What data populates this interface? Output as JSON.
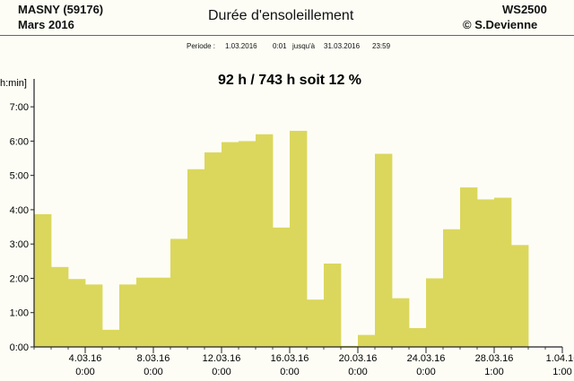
{
  "header": {
    "station": "MASNY (59176)",
    "month": "Mars  2016",
    "title": "Durée d'ensoleillement",
    "device": "WS2500",
    "copyright": "© S.Devienne"
  },
  "period": {
    "label": "Periode :",
    "start_date": "1.03.2016",
    "start_time": "0:01",
    "until": "jusqu'à",
    "end_date": "31.03.2016",
    "end_time": "23:59"
  },
  "colors": {
    "bar": "#dbd75c",
    "axis": "#222222",
    "background": "#fdfdf6"
  },
  "chart_data": {
    "type": "bar",
    "title": "92 h / 743 h  soit  12 %",
    "ylabel": "h:min]",
    "ylim": [
      0,
      7.5
    ],
    "yticks": [
      {
        "value": 0,
        "label": "0:00"
      },
      {
        "value": 1,
        "label": "1:00"
      },
      {
        "value": 2,
        "label": "2:00"
      },
      {
        "value": 3,
        "label": "3:00"
      },
      {
        "value": 4,
        "label": "4:00"
      },
      {
        "value": 5,
        "label": "5:00"
      },
      {
        "value": 6,
        "label": "6:00"
      },
      {
        "value": 7,
        "label": "7:00"
      }
    ],
    "xlim": [
      "2016-03-01",
      "2016-04-01"
    ],
    "xticks": [
      {
        "date": "2016-03-04",
        "label": "4.03.16",
        "sublabel": "0:00"
      },
      {
        "date": "2016-03-08",
        "label": "8.03.16",
        "sublabel": "0:00"
      },
      {
        "date": "2016-03-12",
        "label": "12.03.16",
        "sublabel": "0:00"
      },
      {
        "date": "2016-03-16",
        "label": "16.03.16",
        "sublabel": "0:00"
      },
      {
        "date": "2016-03-20",
        "label": "20.03.16",
        "sublabel": "0:00"
      },
      {
        "date": "2016-03-24",
        "label": "24.03.16",
        "sublabel": "0:00"
      },
      {
        "date": "2016-03-28",
        "label": "28.03.16",
        "sublabel": "1:00"
      },
      {
        "date": "2016-04-01",
        "label": "1.04.16",
        "sublabel": "1:00"
      }
    ],
    "categories": [
      "2016-03-01",
      "2016-03-02",
      "2016-03-03",
      "2016-03-04",
      "2016-03-05",
      "2016-03-06",
      "2016-03-07",
      "2016-03-08",
      "2016-03-09",
      "2016-03-10",
      "2016-03-11",
      "2016-03-12",
      "2016-03-13",
      "2016-03-14",
      "2016-03-15",
      "2016-03-16",
      "2016-03-17",
      "2016-03-18",
      "2016-03-19",
      "2016-03-20",
      "2016-03-21",
      "2016-03-22",
      "2016-03-23",
      "2016-03-24",
      "2016-03-25",
      "2016-03-26",
      "2016-03-27",
      "2016-03-28",
      "2016-03-29",
      "2016-03-30",
      "2016-03-31"
    ],
    "values": [
      3.87,
      2.33,
      1.98,
      1.82,
      0.5,
      1.82,
      2.02,
      2.02,
      3.15,
      5.18,
      5.67,
      5.97,
      6.0,
      6.2,
      3.48,
      6.3,
      1.38,
      2.43,
      0.03,
      0.35,
      5.63,
      1.42,
      0.55,
      2.0,
      3.43,
      4.65,
      4.3,
      4.35,
      2.97,
      0,
      0
    ]
  }
}
